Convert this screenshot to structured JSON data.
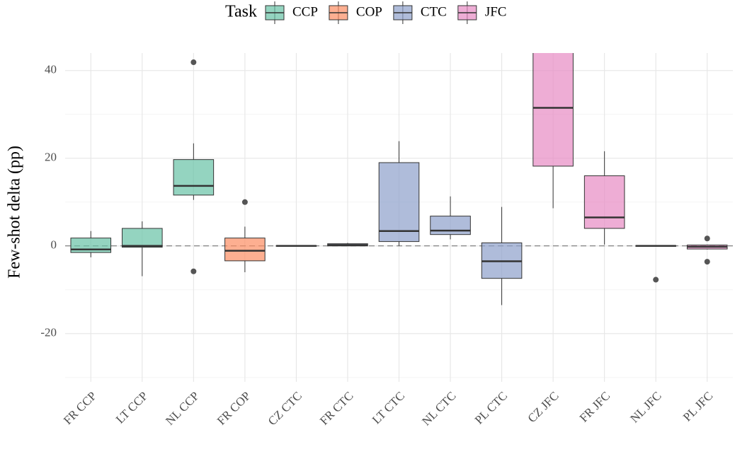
{
  "chart_data": {
    "type": "box",
    "y_label": "Few-shot delta (pp)",
    "legend": {
      "title": "Task",
      "position": "top",
      "items": [
        {
          "name": "CCP",
          "color": "#66c2a5"
        },
        {
          "name": "COP",
          "color": "#fc8d62"
        },
        {
          "name": "CTC",
          "color": "#8da0cb"
        },
        {
          "name": "JFC",
          "color": "#e78ac3"
        }
      ]
    },
    "categories": [
      "FR CCP",
      "LT CCP",
      "NL CCP",
      "FR COP",
      "CZ CTC",
      "FR CTC",
      "LT CTC",
      "NL CTC",
      "PL CTC",
      "CZ JFC",
      "FR JFC",
      "NL JFC",
      "PL JFC"
    ],
    "boxes": [
      {
        "task": 0,
        "whisker_low": -2.6,
        "q1": -1.5,
        "median": -0.8,
        "q3": 1.8,
        "whisker_high": 3.4,
        "outliers": []
      },
      {
        "task": 0,
        "whisker_low": -6.9,
        "q1": -0.3,
        "median": 0,
        "q3": 4.0,
        "whisker_high": 5.6,
        "outliers": []
      },
      {
        "task": 0,
        "whisker_low": 10.5,
        "q1": 11.6,
        "median": 13.7,
        "q3": 19.7,
        "whisker_high": 23.4,
        "outliers": [
          41.9,
          -5.8
        ]
      },
      {
        "task": 1,
        "whisker_low": -6.0,
        "q1": -3.4,
        "median": -1.1,
        "q3": 1.8,
        "whisker_high": 4.4,
        "outliers": [
          10.0
        ]
      },
      {
        "task": 2,
        "whisker_low": -0.1,
        "q1": -0.1,
        "median": 0,
        "q3": 0.1,
        "whisker_high": 0.1,
        "outliers": []
      },
      {
        "task": 2,
        "whisker_low": 0,
        "q1": 0,
        "median": 0.2,
        "q3": 0.5,
        "whisker_high": 0.7,
        "outliers": []
      },
      {
        "task": 2,
        "whisker_low": 0,
        "q1": 1.0,
        "median": 3.4,
        "q3": 19.0,
        "whisker_high": 23.9,
        "outliers": []
      },
      {
        "task": 2,
        "whisker_low": 1.5,
        "q1": 2.6,
        "median": 3.5,
        "q3": 6.8,
        "whisker_high": 11.3,
        "outliers": []
      },
      {
        "task": 2,
        "whisker_low": -13.5,
        "q1": -7.4,
        "median": -3.5,
        "q3": 0.7,
        "whisker_high": 8.9,
        "outliers": []
      },
      {
        "task": 3,
        "whisker_low": 8.6,
        "q1": 18.2,
        "median": 31.5,
        "q3": 47,
        "whisker_high": 50,
        "outliers": []
      },
      {
        "task": 3,
        "whisker_low": 0.3,
        "q1": 4.0,
        "median": 6.5,
        "q3": 16.0,
        "whisker_high": 21.6,
        "outliers": []
      },
      {
        "task": 3,
        "whisker_low": -0.1,
        "q1": -0.1,
        "median": 0,
        "q3": 0.1,
        "whisker_high": 0.1,
        "outliers": [
          -7.7
        ]
      },
      {
        "task": 3,
        "whisker_low": -0.8,
        "q1": -0.7,
        "median": -0.2,
        "q3": 0.2,
        "whisker_high": 0.3,
        "outliers": [
          1.7,
          -3.6
        ]
      }
    ],
    "ylim": [
      -31,
      44
    ],
    "yticks": [
      -20,
      0,
      20,
      40
    ],
    "minor_yticks": [
      -30,
      -10,
      10,
      30
    ],
    "reference_line": 0,
    "grid": true
  }
}
